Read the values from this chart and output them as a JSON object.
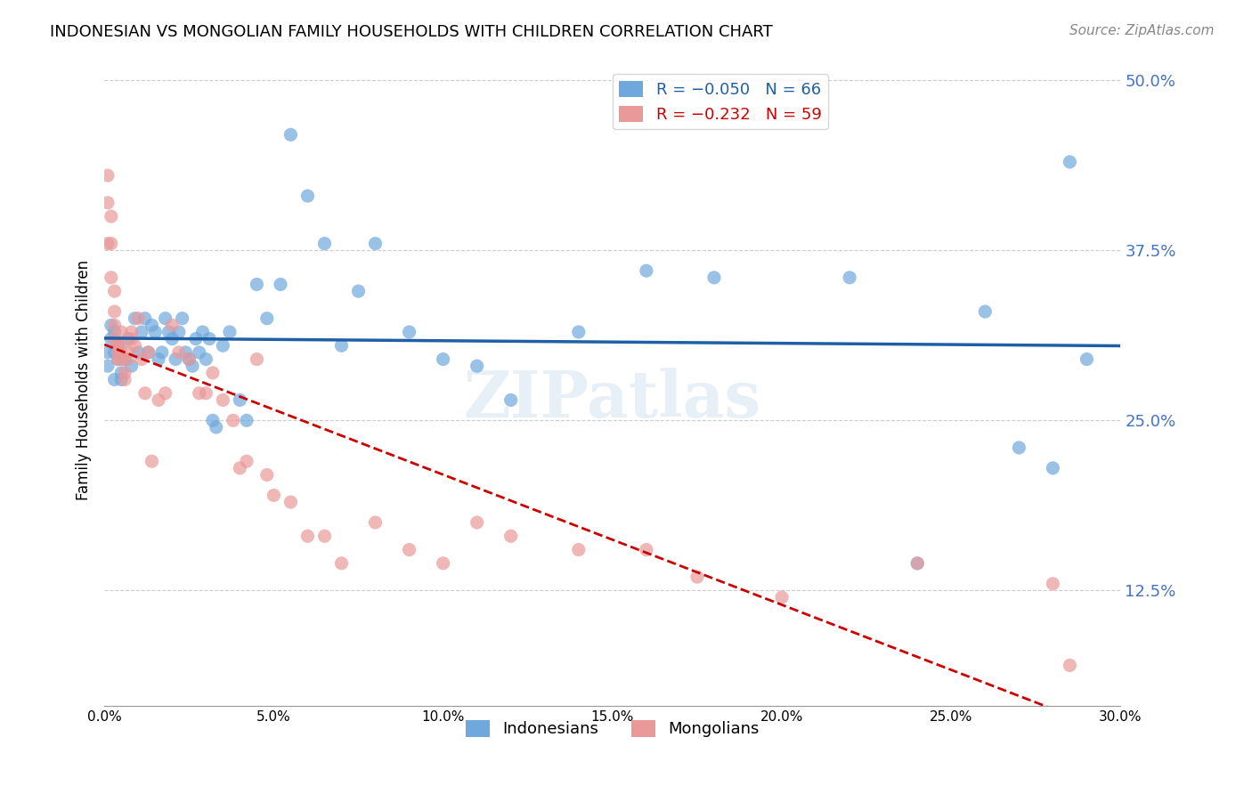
{
  "title": "INDONESIAN VS MONGOLIAN FAMILY HOUSEHOLDS WITH CHILDREN CORRELATION CHART",
  "source": "Source: ZipAtlas.com",
  "xlabel_bottom": "",
  "ylabel": "Family Households with Children",
  "legend_labels": [
    "Indonesians",
    "Mongolians"
  ],
  "legend_r": [
    "R = −0.050",
    "R = −0.232"
  ],
  "legend_n": [
    "N = 66",
    "N = 59"
  ],
  "blue_color": "#6fa8dc",
  "pink_color": "#ea9999",
  "line_blue_color": "#1f5fa6",
  "line_pink_color": "#cc0000",
  "right_axis_color": "#4472c4",
  "right_yticks": [
    0.125,
    0.25,
    0.375,
    0.5
  ],
  "right_yticklabels": [
    "12.5%",
    "25.0%",
    "37.5%",
    "50.0%"
  ],
  "bottom_xticks": [
    0.0,
    0.05,
    0.1,
    0.15,
    0.2,
    0.25,
    0.3
  ],
  "bottom_xticklabels": [
    "0.0%",
    "5.0%",
    "10.0%",
    "15.0%",
    "20.0%",
    "25.0%",
    "30.0%"
  ],
  "xlim": [
    0.0,
    0.3
  ],
  "ylim": [
    0.04,
    0.52
  ],
  "watermark": "ZIPatlas",
  "indonesian_x": [
    0.001,
    0.001,
    0.002,
    0.002,
    0.003,
    0.003,
    0.003,
    0.004,
    0.004,
    0.005,
    0.005,
    0.006,
    0.007,
    0.008,
    0.009,
    0.01,
    0.011,
    0.012,
    0.013,
    0.014,
    0.015,
    0.016,
    0.017,
    0.018,
    0.019,
    0.02,
    0.021,
    0.022,
    0.023,
    0.024,
    0.025,
    0.026,
    0.027,
    0.028,
    0.029,
    0.03,
    0.031,
    0.032,
    0.033,
    0.035,
    0.037,
    0.04,
    0.042,
    0.045,
    0.048,
    0.052,
    0.055,
    0.06,
    0.065,
    0.07,
    0.075,
    0.08,
    0.09,
    0.1,
    0.11,
    0.12,
    0.14,
    0.16,
    0.18,
    0.22,
    0.24,
    0.26,
    0.27,
    0.28,
    0.285,
    0.29
  ],
  "indonesian_y": [
    0.3,
    0.29,
    0.31,
    0.32,
    0.28,
    0.3,
    0.315,
    0.295,
    0.305,
    0.28,
    0.285,
    0.295,
    0.31,
    0.29,
    0.325,
    0.3,
    0.315,
    0.325,
    0.3,
    0.32,
    0.315,
    0.295,
    0.3,
    0.325,
    0.315,
    0.31,
    0.295,
    0.315,
    0.325,
    0.3,
    0.295,
    0.29,
    0.31,
    0.3,
    0.315,
    0.295,
    0.31,
    0.25,
    0.245,
    0.305,
    0.315,
    0.265,
    0.25,
    0.35,
    0.325,
    0.35,
    0.46,
    0.415,
    0.38,
    0.305,
    0.345,
    0.38,
    0.315,
    0.295,
    0.29,
    0.265,
    0.315,
    0.36,
    0.355,
    0.355,
    0.145,
    0.33,
    0.23,
    0.215,
    0.44,
    0.295
  ],
  "mongolian_x": [
    0.001,
    0.001,
    0.001,
    0.002,
    0.002,
    0.002,
    0.003,
    0.003,
    0.003,
    0.003,
    0.004,
    0.004,
    0.004,
    0.005,
    0.005,
    0.005,
    0.006,
    0.006,
    0.007,
    0.007,
    0.008,
    0.008,
    0.009,
    0.01,
    0.011,
    0.012,
    0.013,
    0.014,
    0.016,
    0.018,
    0.02,
    0.022,
    0.025,
    0.028,
    0.03,
    0.032,
    0.035,
    0.038,
    0.04,
    0.042,
    0.045,
    0.048,
    0.05,
    0.055,
    0.06,
    0.065,
    0.07,
    0.08,
    0.09,
    0.1,
    0.11,
    0.12,
    0.14,
    0.16,
    0.175,
    0.2,
    0.24,
    0.28,
    0.285
  ],
  "mongolian_y": [
    0.43,
    0.41,
    0.38,
    0.4,
    0.38,
    0.355,
    0.345,
    0.33,
    0.32,
    0.31,
    0.305,
    0.3,
    0.295,
    0.315,
    0.305,
    0.295,
    0.285,
    0.28,
    0.3,
    0.295,
    0.315,
    0.31,
    0.305,
    0.325,
    0.295,
    0.27,
    0.3,
    0.22,
    0.265,
    0.27,
    0.32,
    0.3,
    0.295,
    0.27,
    0.27,
    0.285,
    0.265,
    0.25,
    0.215,
    0.22,
    0.295,
    0.21,
    0.195,
    0.19,
    0.165,
    0.165,
    0.145,
    0.175,
    0.155,
    0.145,
    0.175,
    0.165,
    0.155,
    0.155,
    0.135,
    0.12,
    0.145,
    0.13,
    0.07
  ]
}
